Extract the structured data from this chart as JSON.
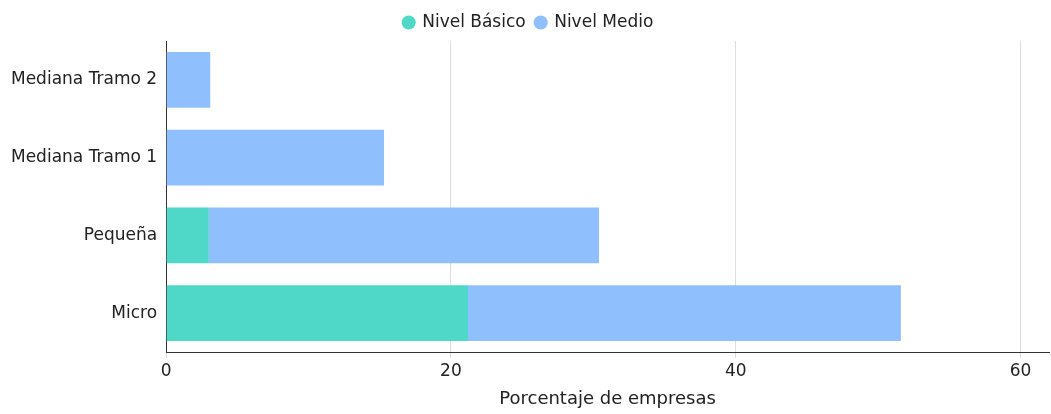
{
  "chart_data": {
    "type": "bar",
    "orientation": "horizontal",
    "stacked": true,
    "xlabel": "Porcentaje de empresas",
    "categories": [
      "Mediana Tramo 2",
      "Mediana Tramo 1",
      "Pequeña",
      "Micro"
    ],
    "series": [
      {
        "name": "Nivel Básico",
        "color": "#4fd8c8",
        "values": [
          0,
          0,
          3.0,
          21.2
        ]
      },
      {
        "name": "Nivel Medio",
        "color": "#8fbffc",
        "values": [
          3.1,
          15.3,
          27.4,
          30.4
        ]
      }
    ],
    "xlim": [
      0,
      62
    ],
    "xticks": [
      0,
      20,
      40,
      60
    ],
    "grid": "x",
    "legend": "top"
  }
}
